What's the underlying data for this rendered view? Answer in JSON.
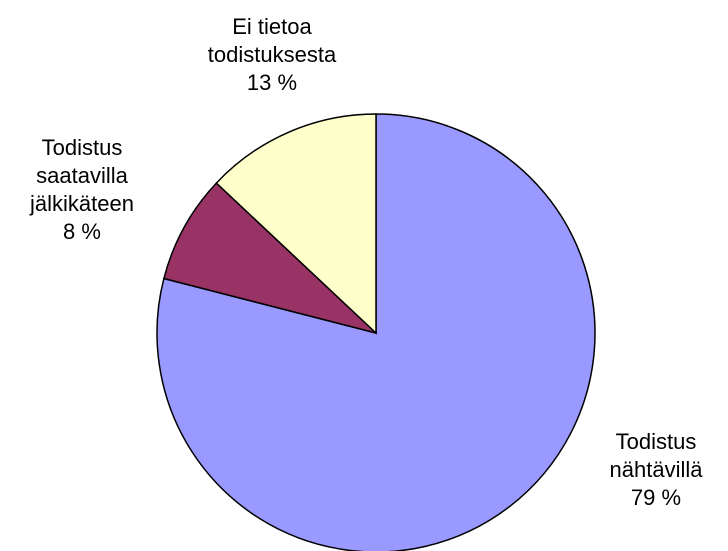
{
  "chart_data": {
    "type": "pie",
    "categories": [
      "Todistus\nnähtävillä",
      "Todistus\nsaatavilla\njälkikäteen",
      "Ei tietoa\ntodistuksesta"
    ],
    "values": [
      79,
      8,
      13
    ],
    "value_labels": [
      "79 %",
      "8 %",
      "13 %"
    ],
    "colors": [
      "#9999ff",
      "#993366",
      "#ffffcc"
    ]
  }
}
